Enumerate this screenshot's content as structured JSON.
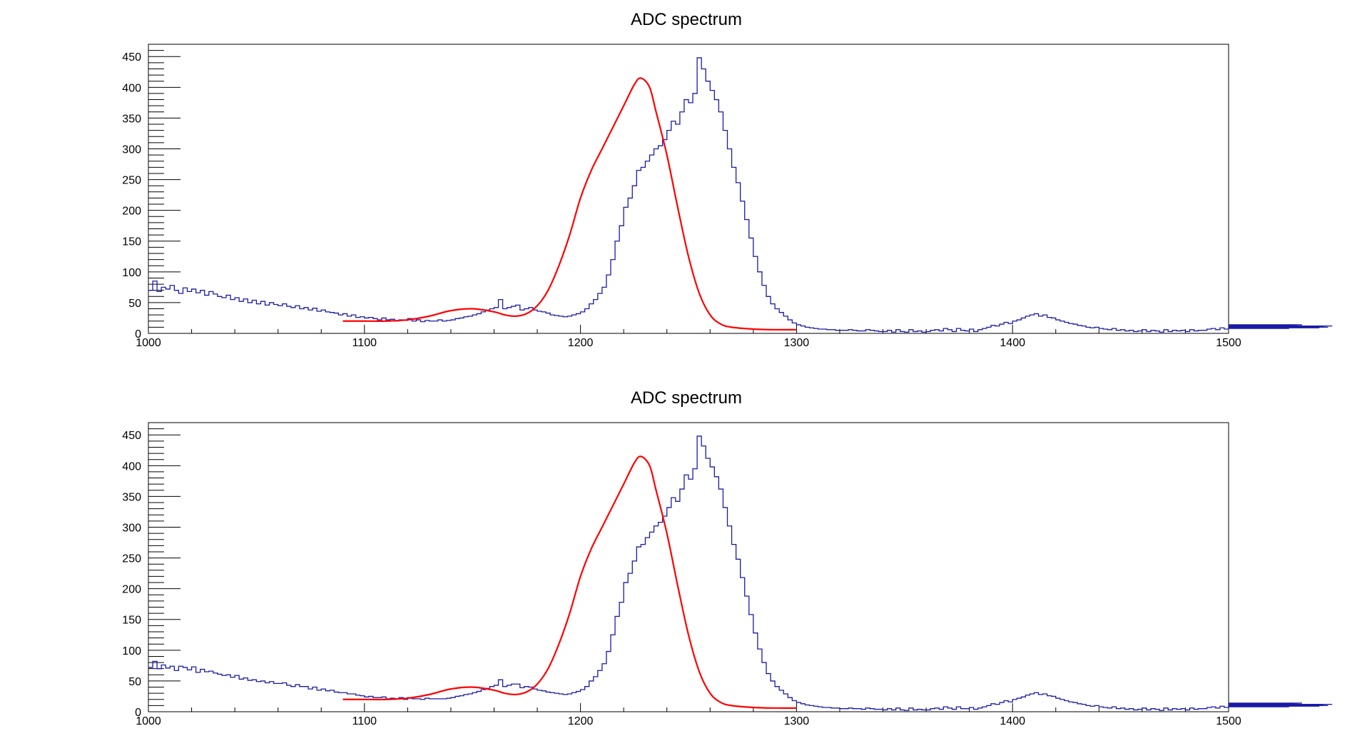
{
  "colors": {
    "histogram": "#1a1aa6",
    "fit": "#ff0000",
    "axis": "#000000"
  },
  "x_ticks": [
    "1000",
    "1100",
    "1200",
    "1300",
    "1400",
    "1500"
  ],
  "y_ticks": [
    "0",
    "50",
    "100",
    "150",
    "200",
    "250",
    "300",
    "350",
    "400",
    "450"
  ],
  "chart_data": [
    {
      "type": "histogram",
      "title": "ADC spectrum",
      "xlim": [
        1000,
        1500
      ],
      "ylim": [
        0,
        470
      ],
      "bin_width": 2,
      "series": [
        {
          "values": [
            70,
            85,
            68,
            75,
            72,
            78,
            70,
            65,
            74,
            68,
            72,
            66,
            70,
            62,
            68,
            64,
            60,
            58,
            62,
            55,
            58,
            52,
            56,
            50,
            54,
            48,
            52,
            46,
            50,
            47,
            45,
            48,
            44,
            42,
            45,
            40,
            42,
            38,
            41,
            36,
            38,
            35,
            34,
            33,
            30,
            32,
            28,
            30,
            26,
            27,
            25,
            26,
            24,
            22,
            25,
            22,
            23,
            20,
            22,
            21,
            24,
            20,
            22,
            19,
            21,
            20,
            20,
            22,
            20,
            21,
            22,
            24,
            25,
            27,
            28,
            30,
            32,
            35,
            38,
            40,
            42,
            55,
            40,
            42,
            44,
            46,
            38,
            40,
            42,
            38,
            36,
            35,
            33,
            30,
            29,
            28,
            27,
            28,
            30,
            32,
            35,
            40,
            48,
            55,
            65,
            75,
            95,
            120,
            150,
            175,
            205,
            220,
            240,
            265,
            270,
            280,
            290,
            300,
            305,
            315,
            330,
            345,
            340,
            360,
            380,
            375,
            390,
            448,
            430,
            410,
            395,
            380,
            360,
            330,
            300,
            270,
            245,
            215,
            185,
            155,
            125,
            100,
            78,
            60,
            48,
            40,
            34,
            28,
            22,
            17,
            14,
            12,
            10,
            9,
            8,
            7,
            7,
            6,
            6,
            5,
            5,
            5,
            6,
            5,
            4,
            4,
            6,
            5,
            4,
            3,
            3,
            5,
            2,
            6,
            3,
            2,
            6,
            3,
            4,
            2,
            3,
            5,
            6,
            4,
            8,
            6,
            3,
            8,
            5,
            4,
            7,
            3,
            6,
            8,
            10,
            13,
            12,
            15,
            18,
            16,
            20,
            22,
            25,
            28,
            30,
            32,
            28,
            30,
            26,
            25,
            22,
            20,
            18,
            16,
            15,
            13,
            12,
            10,
            9,
            10,
            8,
            7,
            6,
            8,
            5,
            6,
            4,
            5,
            3,
            4,
            6,
            3,
            5,
            4,
            2,
            6,
            3,
            5,
            4,
            5,
            3,
            6,
            4,
            5,
            5,
            7,
            8,
            6,
            9,
            7,
            10,
            9,
            8,
            11,
            9,
            12,
            10,
            8,
            12,
            14,
            9,
            12,
            10,
            13,
            8,
            12,
            10,
            14,
            11,
            12,
            10,
            9,
            11,
            10,
            12
          ]
        },
        {
          "values": [
            72,
            82,
            70,
            76,
            71,
            74,
            67,
            74,
            72,
            68,
            73,
            64,
            69,
            65,
            66,
            63,
            61,
            59,
            60,
            56,
            59,
            53,
            55,
            51,
            52,
            49,
            50,
            47,
            49,
            46,
            46,
            47,
            43,
            41,
            44,
            41,
            41,
            37,
            40,
            35,
            37,
            34,
            35,
            32,
            31,
            31,
            29,
            29,
            27,
            26,
            24,
            25,
            23,
            23,
            24,
            21,
            22,
            21,
            23,
            20,
            23,
            21,
            21,
            20,
            22,
            21,
            21,
            21,
            21,
            22,
            23,
            25,
            26,
            28,
            29,
            31,
            33,
            36,
            38,
            41,
            43,
            52,
            41,
            43,
            45,
            45,
            39,
            41,
            40,
            37,
            35,
            34,
            32,
            31,
            30,
            29,
            28,
            29,
            31,
            33,
            36,
            41,
            50,
            57,
            67,
            78,
            98,
            125,
            155,
            178,
            210,
            225,
            245,
            268,
            272,
            283,
            292,
            302,
            308,
            318,
            332,
            348,
            342,
            362,
            385,
            378,
            395,
            448,
            432,
            412,
            398,
            382,
            362,
            332,
            302,
            272,
            248,
            218,
            188,
            158,
            128,
            102,
            80,
            62,
            50,
            41,
            35,
            29,
            23,
            18,
            15,
            13,
            11,
            10,
            9,
            8,
            7,
            7,
            6,
            6,
            5,
            5,
            6,
            5,
            5,
            4,
            6,
            5,
            4,
            4,
            3,
            5,
            3,
            6,
            3,
            2,
            6,
            3,
            4,
            3,
            3,
            5,
            6,
            4,
            8,
            6,
            4,
            8,
            5,
            5,
            7,
            4,
            6,
            8,
            10,
            13,
            12,
            15,
            18,
            16,
            20,
            22,
            24,
            27,
            29,
            31,
            28,
            29,
            26,
            25,
            22,
            20,
            18,
            16,
            15,
            13,
            12,
            10,
            9,
            10,
            8,
            7,
            6,
            8,
            5,
            6,
            4,
            5,
            3,
            4,
            6,
            3,
            5,
            4,
            2,
            6,
            3,
            5,
            4,
            5,
            3,
            6,
            4,
            5,
            5,
            7,
            8,
            6,
            9,
            7,
            10,
            9,
            8,
            11,
            9,
            12,
            10,
            8,
            12,
            14,
            9,
            12,
            10,
            13,
            8,
            12,
            10,
            14,
            11,
            12,
            10,
            9,
            11,
            10,
            12
          ]
        }
      ],
      "fit": {
        "x": [
          1090,
          1100,
          1110,
          1120,
          1130,
          1140,
          1150,
          1160,
          1165,
          1170,
          1175,
          1180,
          1185,
          1190,
          1195,
          1200,
          1205,
          1210,
          1215,
          1220,
          1225,
          1228,
          1232,
          1235,
          1240,
          1245,
          1250,
          1255,
          1260,
          1265,
          1270,
          1280,
          1290,
          1300
        ],
        "y": [
          20,
          20,
          20,
          22,
          28,
          37,
          40,
          35,
          30,
          28,
          32,
          45,
          70,
          110,
          160,
          220,
          265,
          300,
          335,
          370,
          405,
          415,
          400,
          360,
          290,
          205,
          125,
          65,
          30,
          15,
          10,
          7,
          6,
          6
        ]
      }
    },
    {
      "type": "histogram",
      "title": "ADC spectrum",
      "xlim": [
        1000,
        1500
      ],
      "ylim": [
        0,
        470
      ],
      "bin_width": 2,
      "fit": {
        "x": [
          1090,
          1100,
          1110,
          1120,
          1130,
          1140,
          1150,
          1160,
          1165,
          1170,
          1175,
          1180,
          1185,
          1190,
          1195,
          1200,
          1205,
          1210,
          1215,
          1220,
          1225,
          1228,
          1232,
          1235,
          1240,
          1245,
          1250,
          1255,
          1260,
          1265,
          1270,
          1280,
          1290,
          1300
        ],
        "y": [
          20,
          20,
          20,
          22,
          28,
          37,
          40,
          35,
          30,
          28,
          32,
          45,
          70,
          110,
          160,
          220,
          265,
          300,
          335,
          370,
          405,
          415,
          400,
          360,
          290,
          205,
          125,
          65,
          30,
          15,
          10,
          7,
          6,
          6
        ]
      }
    }
  ]
}
